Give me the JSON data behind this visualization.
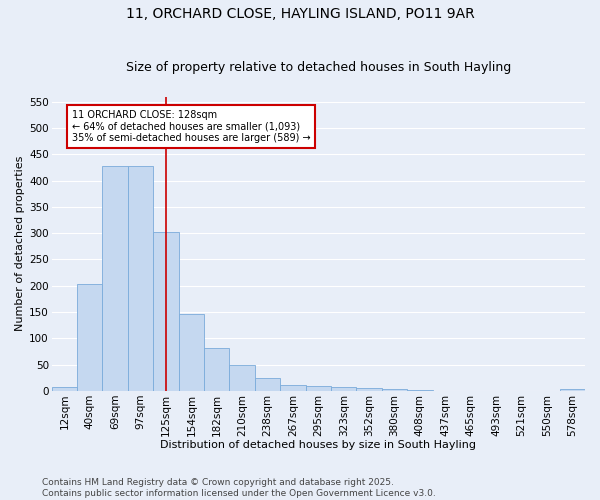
{
  "title1": "11, ORCHARD CLOSE, HAYLING ISLAND, PO11 9AR",
  "title2": "Size of property relative to detached houses in South Hayling",
  "xlabel": "Distribution of detached houses by size in South Hayling",
  "ylabel": "Number of detached properties",
  "bar_color": "#c5d8f0",
  "bar_edge_color": "#7aabda",
  "background_color": "#e8eef8",
  "grid_color": "#ffffff",
  "categories": [
    "12sqm",
    "40sqm",
    "69sqm",
    "97sqm",
    "125sqm",
    "154sqm",
    "182sqm",
    "210sqm",
    "238sqm",
    "267sqm",
    "295sqm",
    "323sqm",
    "352sqm",
    "380sqm",
    "408sqm",
    "437sqm",
    "465sqm",
    "493sqm",
    "521sqm",
    "550sqm",
    "578sqm"
  ],
  "values": [
    8,
    204,
    428,
    428,
    302,
    147,
    81,
    50,
    25,
    12,
    10,
    8,
    5,
    3,
    1,
    0,
    0,
    0,
    0,
    0,
    3
  ],
  "vline_x": 4,
  "vline_color": "#cc0000",
  "annotation_text": "11 ORCHARD CLOSE: 128sqm\n← 64% of detached houses are smaller (1,093)\n35% of semi-detached houses are larger (589) →",
  "ylim": [
    0,
    560
  ],
  "yticks": [
    0,
    50,
    100,
    150,
    200,
    250,
    300,
    350,
    400,
    450,
    500,
    550
  ],
  "footnote": "Contains HM Land Registry data © Crown copyright and database right 2025.\nContains public sector information licensed under the Open Government Licence v3.0.",
  "title_fontsize": 10,
  "subtitle_fontsize": 9,
  "axis_fontsize": 8,
  "tick_fontsize": 7.5,
  "footnote_fontsize": 6.5
}
